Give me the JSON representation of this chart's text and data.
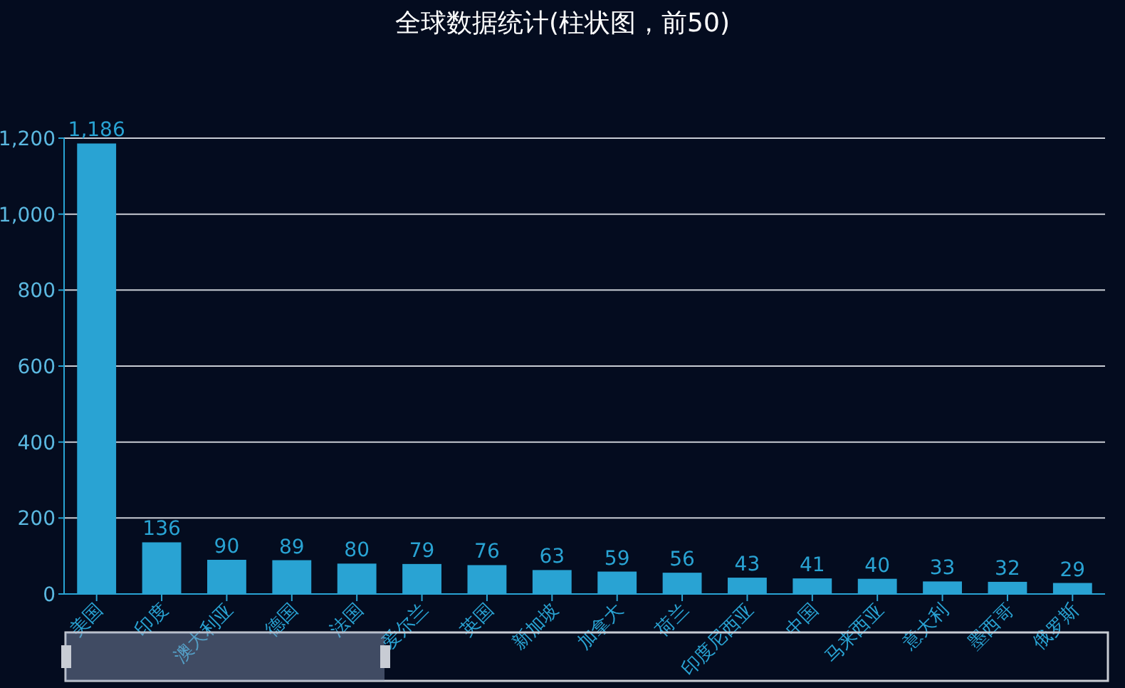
{
  "chart_data": {
    "type": "bar",
    "title": "全球数据统计(柱状图，前50)",
    "categories": [
      "美国",
      "印度",
      "澳大利亚",
      "德国",
      "法国",
      "爱尔兰",
      "英国",
      "新加坡",
      "加拿大",
      "荷兰",
      "印度尼西亚",
      "中国",
      "马来西亚",
      "意大利",
      "墨西哥",
      "俄罗斯"
    ],
    "values": [
      1186,
      136,
      90,
      89,
      80,
      79,
      76,
      63,
      59,
      56,
      43,
      41,
      40,
      33,
      32,
      29
    ],
    "color": "#29a3d3",
    "ylim": [
      0,
      1200
    ],
    "yticks": [
      0,
      200,
      400,
      600,
      800,
      {
        "value": 1000,
        "label": "1,000"
      },
      {
        "value": 1200,
        "label": "1,200"
      }
    ],
    "value_labels": [
      "1,186",
      "136",
      "90",
      "89",
      "80",
      "79",
      "76",
      "63",
      "59",
      "56",
      "43",
      "41",
      "40",
      "33",
      "32",
      "29"
    ],
    "grid": "y"
  }
}
